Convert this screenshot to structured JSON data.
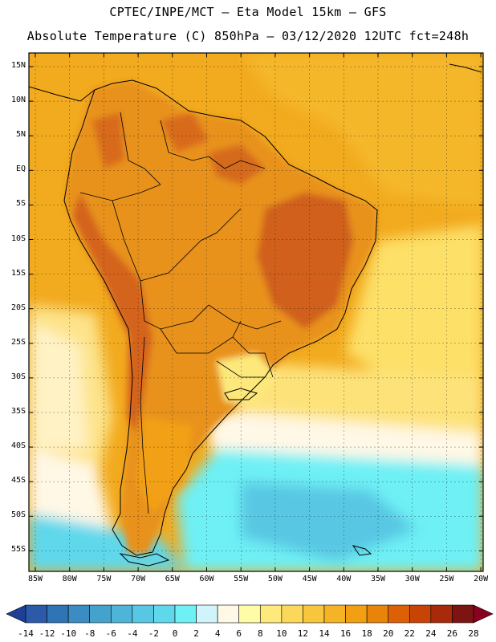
{
  "header": {
    "line1": "CPTEC/INPE/MCT –  Eta Model 15km – GFS",
    "line2": "Absolute Temperature (C) 850hPa – 03/12/2020 12UTC fct=248h"
  },
  "axes": {
    "lat_labels": [
      "15N",
      "10N",
      "5N",
      "EQ",
      "5S",
      "10S",
      "15S",
      "20S",
      "25S",
      "30S",
      "35S",
      "40S",
      "45S",
      "50S",
      "55S"
    ],
    "lon_labels": [
      "85W",
      "80W",
      "75W",
      "70W",
      "65W",
      "60W",
      "55W",
      "50W",
      "45W",
      "40W",
      "35W",
      "30W",
      "25W",
      "20W"
    ]
  },
  "colorbar": {
    "labels": [
      "-14",
      "-12",
      "-10",
      "-8",
      "-6",
      "-4",
      "-2",
      "0",
      "2",
      "4",
      "6",
      "8",
      "10",
      "12",
      "14",
      "16",
      "18",
      "20",
      "22",
      "24",
      "26",
      "28"
    ],
    "colors": [
      "#1f3f96",
      "#2a5aa8",
      "#2f74b5",
      "#3a8cc2",
      "#44a3cc",
      "#4fb5d8",
      "#58c7e3",
      "#5fd8ec",
      "#6ef0f5",
      "#cff4fb",
      "#fff8e6",
      "#fffca8",
      "#fde97c",
      "#fbd85a",
      "#f8c63c",
      "#f5b326",
      "#f2a012",
      "#e8840a",
      "#de6006",
      "#c84406",
      "#a82a0a",
      "#7c1512",
      "#8a0020"
    ]
  },
  "colors": {
    "ocean_warm": "#f3b324",
    "land_hot": "#e37d12",
    "land_hotter": "#c8550c",
    "cool_band": "#fff8e6",
    "cold_ocean": "#6ef0f5"
  }
}
